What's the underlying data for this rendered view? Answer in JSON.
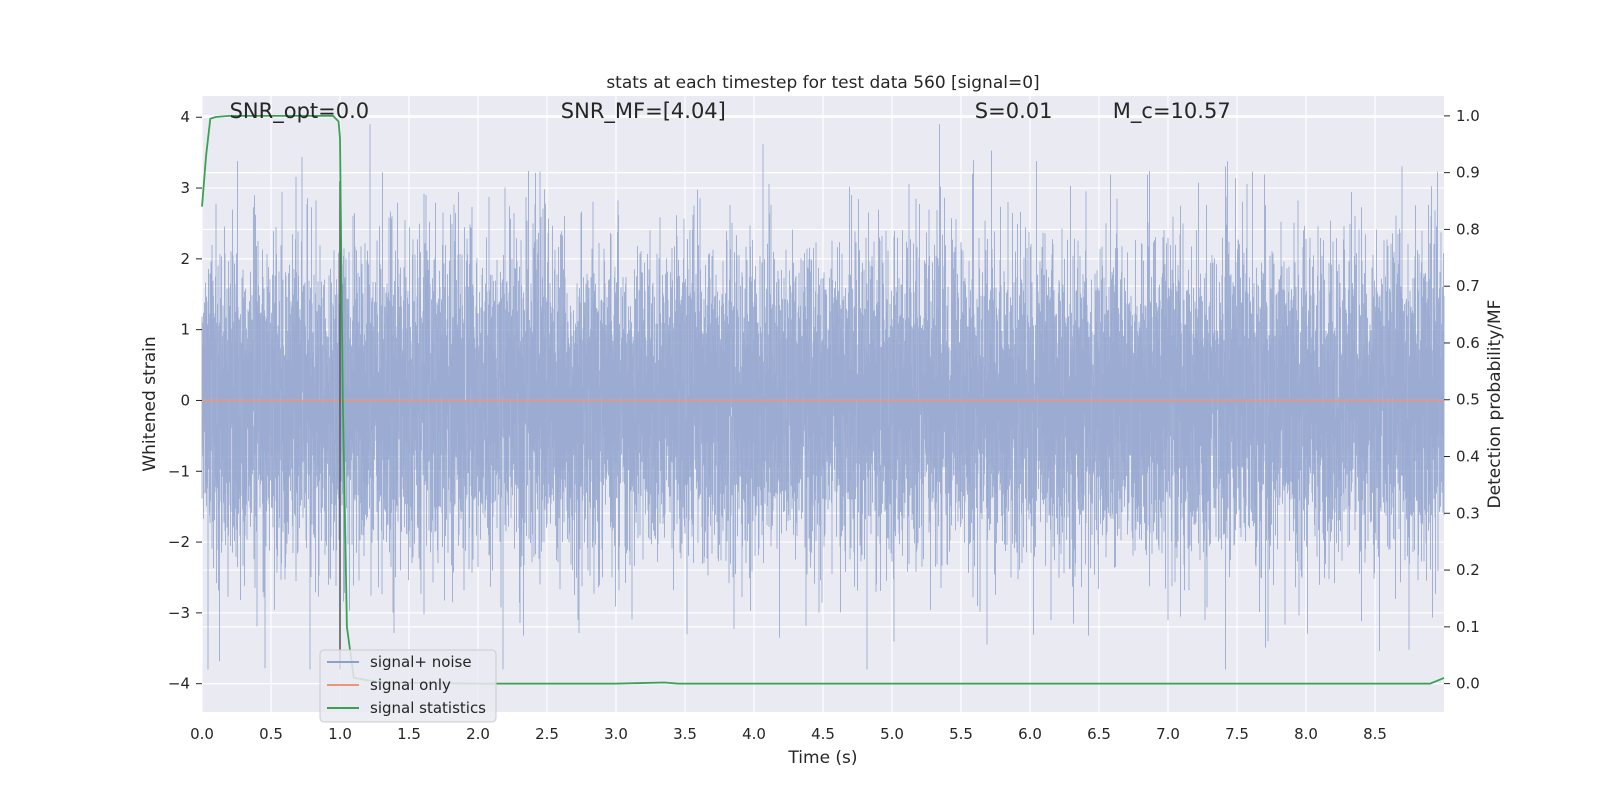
{
  "chart_data": {
    "type": "line",
    "title": "stats at each timestep for test data 560 [signal=0]",
    "xlabel": "Time (s)",
    "ylabel": "Whitened strain",
    "y2label": "Detection probability/MF",
    "xlim": [
      0.0,
      9.0
    ],
    "ylim": [
      -4.4,
      4.3
    ],
    "y2lim": [
      -0.05,
      1.035
    ],
    "xticks": [
      "0.0",
      "0.5",
      "1.0",
      "1.5",
      "2.0",
      "2.5",
      "3.0",
      "3.5",
      "4.0",
      "4.5",
      "5.0",
      "5.5",
      "6.0",
      "6.5",
      "7.0",
      "7.5",
      "8.0",
      "8.5"
    ],
    "yticks": [
      "4",
      "3",
      "2",
      "1",
      "0",
      "−1",
      "−2",
      "−3",
      "−4"
    ],
    "y2ticks": [
      "1.0",
      "0.9",
      "0.8",
      "0.7",
      "0.6",
      "0.5",
      "0.4",
      "0.3",
      "0.2",
      "0.1",
      "0.0"
    ],
    "grid": true,
    "legend_position": "lower-left",
    "annotations": [
      {
        "text": "SNR_opt=0.0",
        "x": 0.2,
        "y": 4.1
      },
      {
        "text": "SNR_MF=[4.04]",
        "x": 2.6,
        "y": 4.1
      },
      {
        "text": "S=0.01",
        "x": 5.6,
        "y": 4.1
      },
      {
        "text": "M_c=10.57",
        "x": 6.6,
        "y": 4.1
      }
    ],
    "vline": {
      "x": 1.0
    },
    "series": [
      {
        "name": "signal+ noise",
        "color": "#8da0cb",
        "axis": "left",
        "description": "noise trace, ~Gaussian with peaks to about ±3.8",
        "sample_rate": 4096
      },
      {
        "name": "signal only",
        "color": "#e8967c",
        "axis": "left",
        "x": [
          0.0,
          9.0
        ],
        "y": [
          0.0,
          0.0
        ]
      },
      {
        "name": "signal statistics",
        "color": "#3aa153",
        "axis": "right",
        "x": [
          0.0,
          0.03,
          0.06,
          0.1,
          0.2,
          0.4,
          0.6,
          0.8,
          0.95,
          0.99,
          1.0,
          1.02,
          1.05,
          1.1,
          1.3,
          2.0,
          3.0,
          3.35,
          3.45,
          4.0,
          6.0,
          8.0,
          8.9,
          8.95,
          9.0
        ],
        "y": [
          0.84,
          0.93,
          0.995,
          0.998,
          1.0,
          1.0,
          1.0,
          1.0,
          1.0,
          0.99,
          0.96,
          0.5,
          0.1,
          0.01,
          0.002,
          0.0,
          0.0,
          0.002,
          0.0,
          0.0,
          0.0,
          0.0,
          0.0,
          0.005,
          0.01
        ]
      }
    ]
  }
}
